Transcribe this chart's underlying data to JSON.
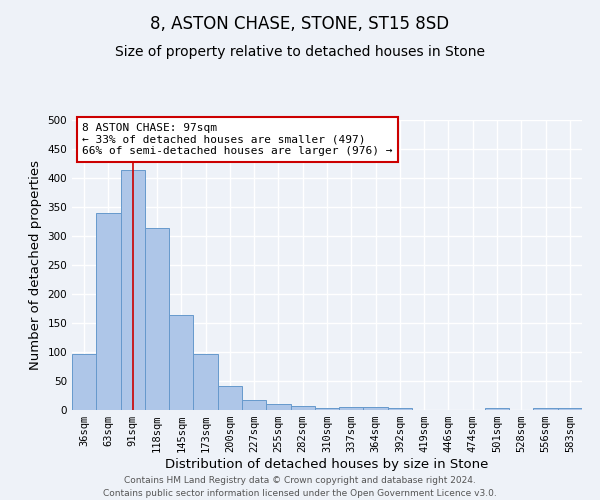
{
  "title": "8, ASTON CHASE, STONE, ST15 8SD",
  "subtitle": "Size of property relative to detached houses in Stone",
  "xlabel": "Distribution of detached houses by size in Stone",
  "ylabel": "Number of detached properties",
  "categories": [
    "36sqm",
    "63sqm",
    "91sqm",
    "118sqm",
    "145sqm",
    "173sqm",
    "200sqm",
    "227sqm",
    "255sqm",
    "282sqm",
    "310sqm",
    "337sqm",
    "364sqm",
    "392sqm",
    "419sqm",
    "446sqm",
    "474sqm",
    "501sqm",
    "528sqm",
    "556sqm",
    "583sqm"
  ],
  "values": [
    97,
    340,
    413,
    313,
    163,
    97,
    42,
    17,
    10,
    7,
    4,
    5,
    6,
    3,
    0,
    0,
    0,
    4,
    0,
    4,
    4
  ],
  "bar_color": "#aec6e8",
  "bar_edge_color": "#6699cc",
  "vline_x_index": 2,
  "vline_color": "#cc0000",
  "annotation_text": "8 ASTON CHASE: 97sqm\n← 33% of detached houses are smaller (497)\n66% of semi-detached houses are larger (976) →",
  "annotation_box_color": "#ffffff",
  "annotation_box_edge_color": "#cc0000",
  "ylim": [
    0,
    500
  ],
  "yticks": [
    0,
    50,
    100,
    150,
    200,
    250,
    300,
    350,
    400,
    450,
    500
  ],
  "bg_color": "#eef2f8",
  "grid_color": "#ffffff",
  "footer_line1": "Contains HM Land Registry data © Crown copyright and database right 2024.",
  "footer_line2": "Contains public sector information licensed under the Open Government Licence v3.0.",
  "title_fontsize": 12,
  "subtitle_fontsize": 10,
  "axis_label_fontsize": 9.5,
  "tick_fontsize": 7.5,
  "annotation_fontsize": 8,
  "footer_fontsize": 6.5
}
